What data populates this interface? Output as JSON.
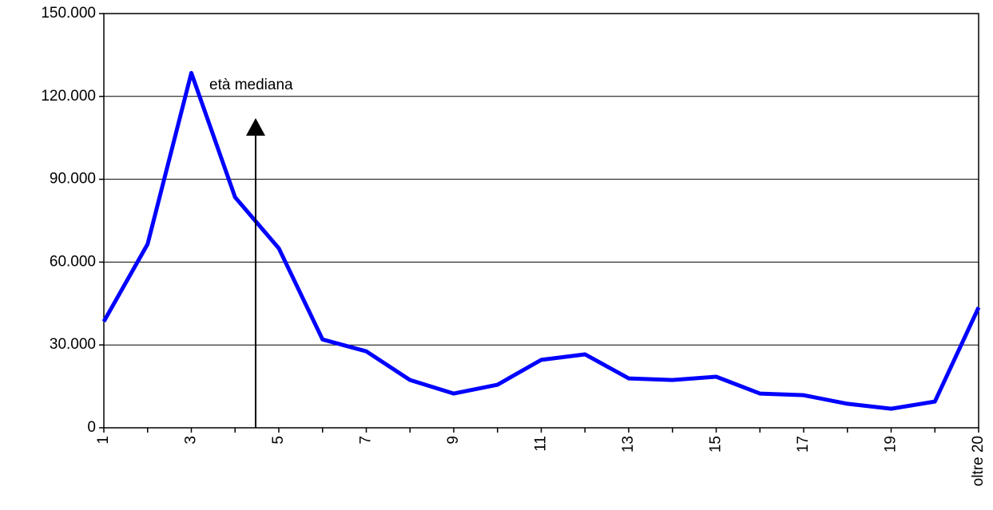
{
  "chart_data": {
    "type": "line",
    "annotation": "età mediana",
    "categories": [
      "1",
      null,
      "3",
      null,
      "5",
      null,
      "7",
      null,
      "9",
      null,
      "11",
      null,
      "13",
      null,
      "15",
      null,
      "17",
      null,
      "19",
      null,
      "oltre 20"
    ],
    "series": [
      {
        "color": "#0000ff",
        "values": [
          38500,
          66500,
          128500,
          83500,
          65000,
          32000,
          27700,
          17300,
          12400,
          15600,
          24600,
          26600,
          17900,
          17300,
          18500,
          12400,
          11800,
          8700,
          6900,
          9500,
          43600
        ]
      }
    ],
    "ylim": [
      0,
      150000
    ],
    "yticks": [
      0,
      {
        "value": 30000,
        "label": "30.000"
      },
      {
        "value": 60000,
        "label": "60.000"
      },
      {
        "value": 90000,
        "label": "90.000"
      },
      {
        "value": 120000,
        "label": "120.000"
      },
      {
        "value": 150000,
        "label": "150.000"
      }
    ],
    "grid": true
  }
}
